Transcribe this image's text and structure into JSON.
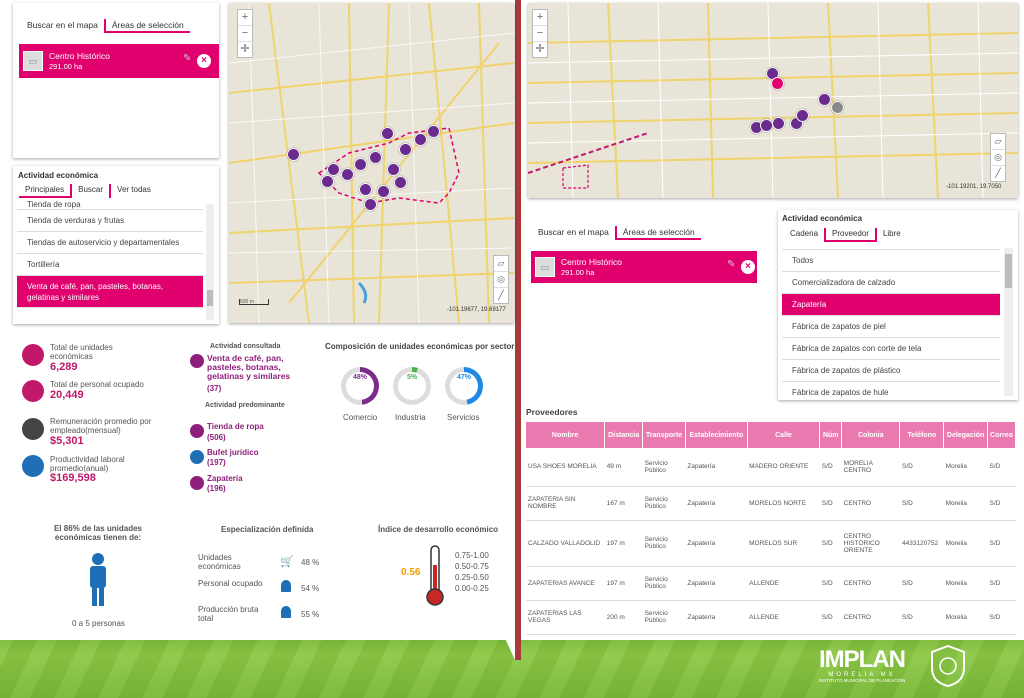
{
  "left": {
    "area_tabs": [
      "Buscar en el mapa",
      "Áreas de selección"
    ],
    "selection": {
      "name": "Centro Histórico",
      "area": "291.00 ha"
    },
    "activity": {
      "title": "Actividad económica",
      "tabs": [
        "Principales",
        "Buscar",
        "Ver todas"
      ],
      "items": [
        "Tienda de ropa",
        "Tienda de verduras y frutas",
        "Tiendas de autoservicio y departamentales",
        "Tortillería",
        "Venta de café, pan, pasteles, botanas, gelatinas y similares"
      ]
    },
    "map": {
      "coords": "-101.19677, 19.69177",
      "scale": "500 m"
    },
    "stats": [
      {
        "label": "Total de unidades económicas",
        "value": "6,289",
        "icon": "store-icon"
      },
      {
        "label": "Total de personal ocupado",
        "value": "20,449",
        "icon": "briefcase-icon"
      },
      {
        "label": "Remuneración promedio por empleado(mensual)",
        "value": "$5,301",
        "icon": "money-icon"
      },
      {
        "label": "Productividad laboral promedio(anual)",
        "value": "$169,598",
        "icon": "gear-icon"
      }
    ],
    "consulted": {
      "title": "Actividad consultada",
      "name": "Venta de café, pan, pasteles, botanas, gelatinas y similares",
      "count": "(37)"
    },
    "predominant": {
      "title": "Actividad predominante",
      "items": [
        {
          "name": "Tienda de ropa",
          "count": "(506)"
        },
        {
          "name": "Bufet jurídico",
          "count": "(197)"
        },
        {
          "name": "Zapatería",
          "count": "(196)"
        }
      ]
    },
    "composition": {
      "title": "Composición de unidades económicas por sector",
      "sectors": [
        {
          "name": "Comercio",
          "pct": "48%",
          "value": 48,
          "color": "#7b2d8b"
        },
        {
          "name": "Industria",
          "pct": "5%",
          "value": 5,
          "color": "#4caf50"
        },
        {
          "name": "Servicios",
          "pct": "47%",
          "value": 47,
          "color": "#1e88e5"
        }
      ]
    },
    "people": {
      "title": "El 86% de las unidades económicas tienen de:",
      "range": "0 a 5 personas"
    },
    "specialization": {
      "title": "Especialización definida",
      "rows": [
        {
          "label": "Unidades económicas",
          "pct": "48 %"
        },
        {
          "label": "Personal ocupado",
          "pct": "54 %"
        },
        {
          "label": "Producción bruta total",
          "pct": "55 %"
        }
      ]
    },
    "development": {
      "title": "Índice de desarrollo económico",
      "value": "0.56",
      "ranges": [
        "0.75-1.00",
        "0.50-0.75",
        "0.25-0.50",
        "0.00-0.25"
      ]
    }
  },
  "right": {
    "map": {
      "coords": "-101.19201, 19.7050"
    },
    "area_tabs": [
      "Buscar en el mapa",
      "Áreas de selección"
    ],
    "selection": {
      "name": "Centro Histórico",
      "area": "291.00 ha"
    },
    "activity": {
      "title": "Actividad económica",
      "tabs": [
        "Cadena",
        "Proveedor",
        "Libre"
      ],
      "items": [
        "Todos",
        "Comercializadora de calzado",
        "Zapatería",
        "Fábrica de zapatos de piel",
        "Fábrica de zapatos con corte de tela",
        "Fábrica de zapatos de plástico",
        "Fábrica de zapatos de hule"
      ]
    },
    "providers": {
      "title": "Proveedores",
      "columns": [
        "Nombre",
        "Distancia",
        "Transporte",
        "Establecimiento",
        "Calle",
        "Núm",
        "Colonia",
        "Teléfono",
        "Delegación",
        "Correo"
      ],
      "rows": [
        [
          "USA SHOES MORELIA",
          "49 m",
          "Servicio Público",
          "Zapatería",
          "MADERO ORIENTE",
          "S/D",
          "MORELIA CENTRO",
          "S/D",
          "Morelia",
          "S/D"
        ],
        [
          "ZAPATERIA SIN NOMBRE",
          "167 m",
          "Servicio Público",
          "Zapatería",
          "MORELOS NORTE",
          "S/D",
          "CENTRO",
          "S/D",
          "Morelia",
          "S/D"
        ],
        [
          "CALZADO VALLADOLID",
          "197 m",
          "Servicio Público",
          "Zapatería",
          "MORELOS SUR",
          "S/D",
          "CENTRO HISTÓRICO ORIENTE",
          "4433120752",
          "Morelia",
          "S/D"
        ],
        [
          "ZAPATERIAS AVANCE",
          "197 m",
          "Servicio Público",
          "Zapatería",
          "ALLENDE",
          "S/D",
          "CENTRO",
          "S/D",
          "Morelia",
          "S/D"
        ],
        [
          "ZAPATERIAS LAS VEGAS",
          "200 m",
          "Servicio Público",
          "Zapatería",
          "ALLENDE",
          "S/D",
          "CENTRO",
          "S/D",
          "Morelia",
          "S/D"
        ]
      ]
    }
  },
  "footer": {
    "brand": "IMPLAN",
    "brand_sub": "MORELIA MX",
    "brand_caption": "INSTITUTO MUNICIPAL DE PLANEACIÓN"
  }
}
